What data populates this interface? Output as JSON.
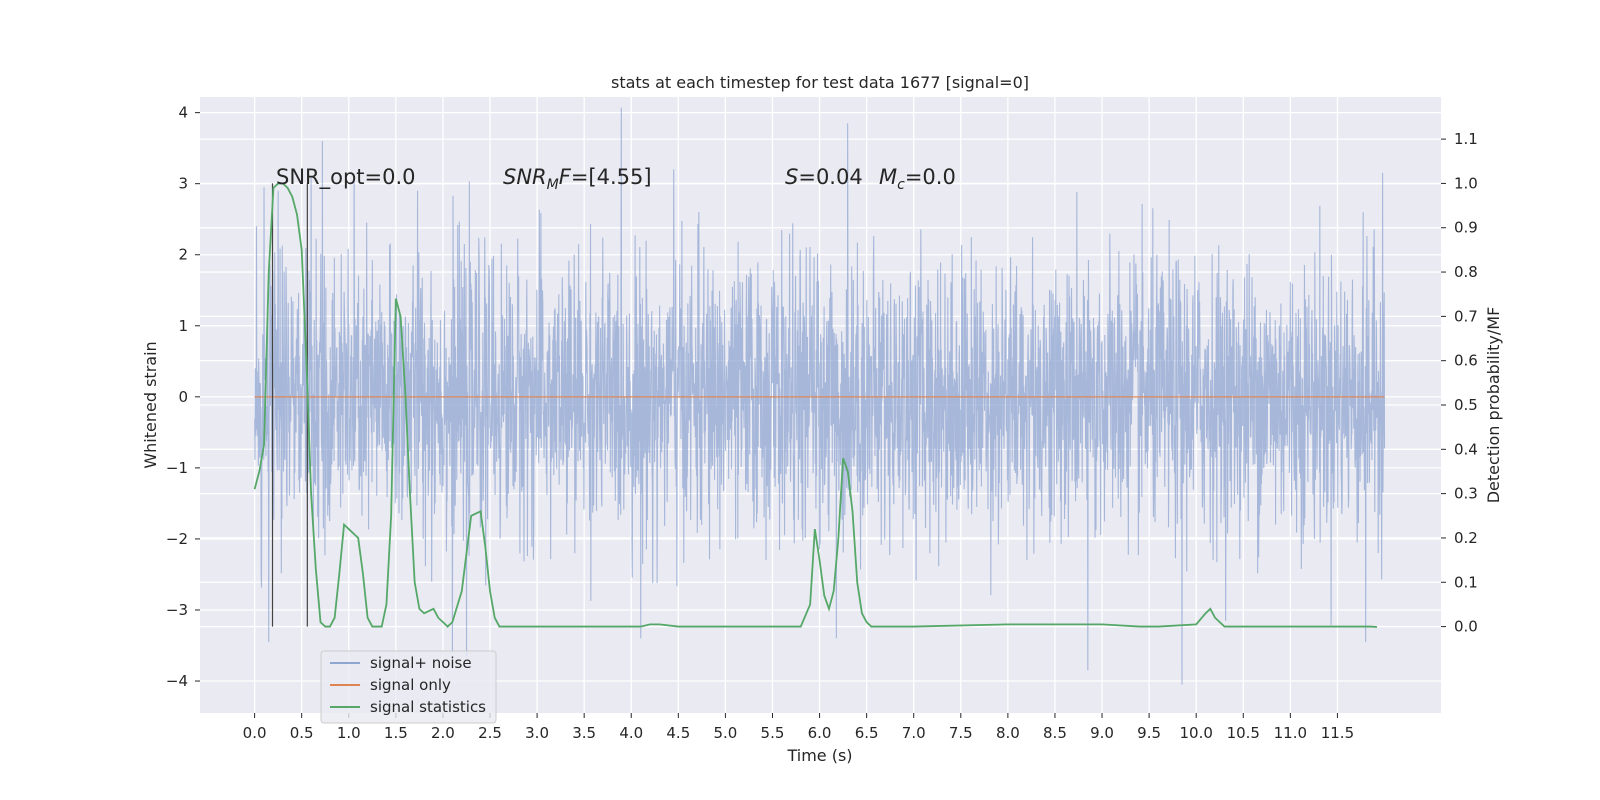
{
  "chart_data": {
    "type": "line",
    "title": "stats at each timestep for test data 1677 [signal=0]",
    "xlabel": "Time (s)",
    "ylabel": "Whitened strain",
    "y2label": "Detection probability/MF",
    "xlim": [
      -0.58,
      12.6
    ],
    "ylim": [
      -4.45,
      4.22
    ],
    "y2lim": [
      -0.195,
      1.195
    ],
    "x_ticks": [
      0.0,
      0.5,
      1.0,
      1.5,
      2.0,
      2.5,
      3.0,
      3.5,
      4.0,
      4.5,
      5.0,
      5.5,
      6.0,
      6.5,
      7.0,
      7.5,
      8.0,
      8.5,
      9.0,
      9.5,
      10.0,
      10.5,
      11.0,
      11.5
    ],
    "x_tick_labels": [
      "0.0",
      "0.5",
      "1.0",
      "1.5",
      "2.0",
      "2.5",
      "3.0",
      "3.5",
      "4.0",
      "4.5",
      "5.0",
      "5.5",
      "6.0",
      "6.5",
      "7.0",
      "7.5",
      "8.0",
      "8.5",
      "9.0",
      "9.5",
      "10.0",
      "10.5",
      "11.0",
      "11.5"
    ],
    "y_ticks": [
      -4,
      -3,
      -2,
      -1,
      0,
      1,
      2,
      3,
      4
    ],
    "y_tick_labels": [
      "−4",
      "−3",
      "−2",
      "−1",
      "0",
      "1",
      "2",
      "3",
      "4"
    ],
    "y2_ticks": [
      0.0,
      0.1,
      0.2,
      0.3,
      0.4,
      0.5,
      0.6,
      0.7,
      0.8,
      0.9,
      1.0,
      1.1
    ],
    "y2_tick_labels": [
      "0.0",
      "0.1",
      "0.2",
      "0.3",
      "0.4",
      "0.5",
      "0.6",
      "0.7",
      "0.8",
      "0.9",
      "1.0",
      "1.1"
    ],
    "grid": true,
    "legend_position": "lower-left",
    "annotations": {
      "snr_opt": "SNR_opt=0.0",
      "snr_mf_label": "SNR",
      "snr_mf_sub": "M",
      "snr_mf_value": "F=[4.55]",
      "s_label": "S",
      "s_value": "=0.04",
      "mc_label": "M",
      "mc_sub": "c",
      "mc_value": "=0.0"
    },
    "vertical_markers": [
      0.19,
      0.56
    ],
    "series": [
      {
        "name": "signal+ noise",
        "color": "#8fa6d1",
        "axis": "left",
        "x_range": [
          0.0,
          12.0
        ],
        "description_points": "dense noise trace approximately N(0,1)",
        "spikes": [
          {
            "x": 0.02,
            "y": 2.4
          },
          {
            "x": 0.07,
            "y": -2.5
          },
          {
            "x": 0.1,
            "y": 2.95
          },
          {
            "x": 0.15,
            "y": -3.45
          },
          {
            "x": 0.25,
            "y": 2.9
          },
          {
            "x": 0.6,
            "y": 3.1
          },
          {
            "x": 0.72,
            "y": 3.6
          },
          {
            "x": 1.73,
            "y": 2.9
          },
          {
            "x": 2.1,
            "y": -3.6
          },
          {
            "x": 2.25,
            "y": -3.65
          },
          {
            "x": 4.1,
            "y": -3.4
          },
          {
            "x": 4.45,
            "y": 3.2
          },
          {
            "x": 6.18,
            "y": -3.4
          },
          {
            "x": 6.3,
            "y": 3.85
          },
          {
            "x": 8.85,
            "y": -3.85
          },
          {
            "x": 9.85,
            "y": -4.05
          },
          {
            "x": 11.8,
            "y": -3.45
          },
          {
            "x": 11.98,
            "y": 3.15
          }
        ]
      },
      {
        "name": "signal only",
        "color": "#dd8452",
        "axis": "left",
        "x": [
          0.0,
          12.0
        ],
        "y": [
          0.0,
          0.0
        ]
      },
      {
        "name": "signal statistics",
        "color": "#55a868",
        "axis": "right",
        "x": [
          0.0,
          0.05,
          0.1,
          0.15,
          0.2,
          0.25,
          0.3,
          0.35,
          0.4,
          0.45,
          0.5,
          0.55,
          0.6,
          0.65,
          0.7,
          0.75,
          0.8,
          0.85,
          0.9,
          0.95,
          1.0,
          1.05,
          1.1,
          1.15,
          1.2,
          1.25,
          1.3,
          1.35,
          1.4,
          1.45,
          1.5,
          1.55,
          1.6,
          1.65,
          1.7,
          1.75,
          1.8,
          1.85,
          1.9,
          1.95,
          2.0,
          2.05,
          2.1,
          2.2,
          2.3,
          2.4,
          2.45,
          2.5,
          2.55,
          2.6,
          2.65,
          2.7,
          2.75,
          2.8,
          2.9,
          3.0,
          3.5,
          3.7,
          4.0,
          4.1,
          4.2,
          4.3,
          4.5,
          5.0,
          5.5,
          5.7,
          5.8,
          5.9,
          5.95,
          6.0,
          6.05,
          6.1,
          6.15,
          6.2,
          6.25,
          6.3,
          6.35,
          6.4,
          6.45,
          6.5,
          6.55,
          6.6,
          6.7,
          6.8,
          6.9,
          7.0,
          8.0,
          9.0,
          9.4,
          9.5,
          9.6,
          10.0,
          10.1,
          10.15,
          10.2,
          10.25,
          10.3,
          10.35,
          10.4,
          10.5,
          11.0,
          11.5,
          11.85,
          11.92
        ],
        "y": [
          0.31,
          0.35,
          0.41,
          0.8,
          0.99,
          1.0,
          1.0,
          0.99,
          0.97,
          0.93,
          0.85,
          0.6,
          0.3,
          0.13,
          0.01,
          0.0,
          0.0,
          0.02,
          0.12,
          0.23,
          0.22,
          0.21,
          0.2,
          0.12,
          0.02,
          0.0,
          0.0,
          0.0,
          0.05,
          0.25,
          0.74,
          0.7,
          0.53,
          0.3,
          0.1,
          0.04,
          0.03,
          0.035,
          0.04,
          0.02,
          0.01,
          0.0,
          0.01,
          0.08,
          0.25,
          0.26,
          0.18,
          0.08,
          0.02,
          0.0,
          0.0,
          0.0,
          0.0,
          0.0,
          0.0,
          0.0,
          0.0,
          0.0,
          0.0,
          0.0,
          0.005,
          0.005,
          0.0,
          0.0,
          0.0,
          0.0,
          0.0,
          0.05,
          0.22,
          0.15,
          0.07,
          0.04,
          0.08,
          0.2,
          0.38,
          0.35,
          0.26,
          0.1,
          0.03,
          0.01,
          0.0,
          0.0,
          0.0,
          0.0,
          0.0,
          0.0,
          0.005,
          0.005,
          0.0,
          0.0,
          0.0,
          0.005,
          0.03,
          0.04,
          0.02,
          0.01,
          0.0,
          0.0,
          0.0,
          0.0,
          0.0,
          0.0,
          0.0,
          -0.001
        ]
      }
    ]
  }
}
